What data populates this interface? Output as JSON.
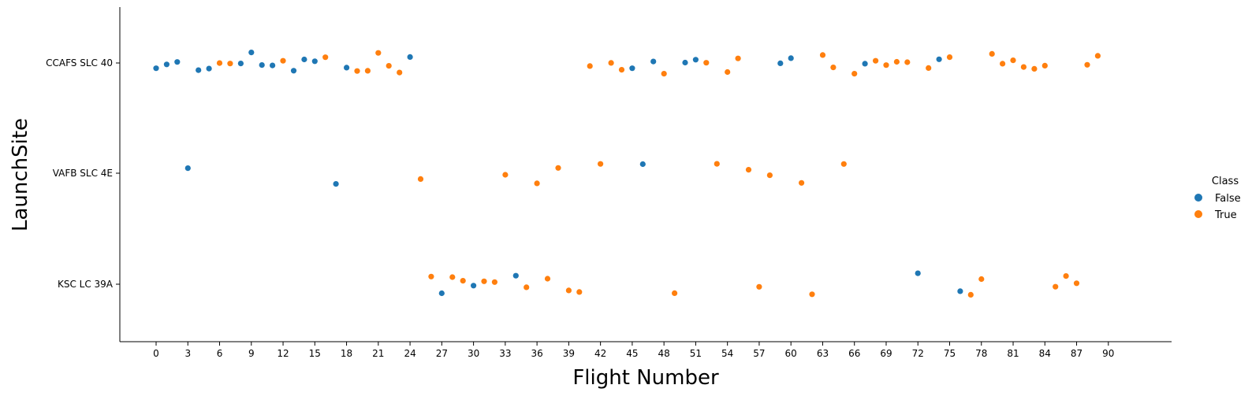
{
  "chart_data": {
    "type": "scatter",
    "xlabel": "Flight Number",
    "ylabel": "LaunchSite",
    "categories": [
      "CCAFS SLC 40",
      "VAFB SLC 4E",
      "KSC LC 39A"
    ],
    "x_ticks": [
      "0",
      "3",
      "6",
      "9",
      "12",
      "15",
      "18",
      "21",
      "24",
      "27",
      "30",
      "33",
      "36",
      "39",
      "42",
      "45",
      "48",
      "51",
      "54",
      "57",
      "60",
      "63",
      "66",
      "69",
      "72",
      "75",
      "78",
      "81",
      "84",
      "87",
      "90"
    ],
    "legend": {
      "title": "Class",
      "entries": [
        {
          "label": "False",
          "color": "#1f77b4"
        },
        {
          "label": "True",
          "color": "#ff7f0e"
        }
      ],
      "placement": "right"
    },
    "points": [
      {
        "flight": 1,
        "site": "CCAFS SLC 40",
        "class": "False"
      },
      {
        "flight": 2,
        "site": "CCAFS SLC 40",
        "class": "False"
      },
      {
        "flight": 3,
        "site": "CCAFS SLC 40",
        "class": "False"
      },
      {
        "flight": 4,
        "site": "VAFB SLC 4E",
        "class": "False"
      },
      {
        "flight": 5,
        "site": "CCAFS SLC 40",
        "class": "False"
      },
      {
        "flight": 6,
        "site": "CCAFS SLC 40",
        "class": "False"
      },
      {
        "flight": 7,
        "site": "CCAFS SLC 40",
        "class": "True"
      },
      {
        "flight": 8,
        "site": "CCAFS SLC 40",
        "class": "True"
      },
      {
        "flight": 9,
        "site": "CCAFS SLC 40",
        "class": "False"
      },
      {
        "flight": 10,
        "site": "CCAFS SLC 40",
        "class": "False"
      },
      {
        "flight": 11,
        "site": "CCAFS SLC 40",
        "class": "False"
      },
      {
        "flight": 12,
        "site": "CCAFS SLC 40",
        "class": "False"
      },
      {
        "flight": 13,
        "site": "CCAFS SLC 40",
        "class": "True"
      },
      {
        "flight": 14,
        "site": "CCAFS SLC 40",
        "class": "False"
      },
      {
        "flight": 15,
        "site": "CCAFS SLC 40",
        "class": "False"
      },
      {
        "flight": 16,
        "site": "CCAFS SLC 40",
        "class": "False"
      },
      {
        "flight": 17,
        "site": "CCAFS SLC 40",
        "class": "True"
      },
      {
        "flight": 18,
        "site": "VAFB SLC 4E",
        "class": "False"
      },
      {
        "flight": 19,
        "site": "CCAFS SLC 40",
        "class": "False"
      },
      {
        "flight": 20,
        "site": "CCAFS SLC 40",
        "class": "True"
      },
      {
        "flight": 21,
        "site": "CCAFS SLC 40",
        "class": "True"
      },
      {
        "flight": 22,
        "site": "CCAFS SLC 40",
        "class": "True"
      },
      {
        "flight": 23,
        "site": "CCAFS SLC 40",
        "class": "True"
      },
      {
        "flight": 24,
        "site": "CCAFS SLC 40",
        "class": "True"
      },
      {
        "flight": 25,
        "site": "CCAFS SLC 40",
        "class": "False"
      },
      {
        "flight": 26,
        "site": "VAFB SLC 4E",
        "class": "True"
      },
      {
        "flight": 27,
        "site": "KSC LC 39A",
        "class": "True"
      },
      {
        "flight": 28,
        "site": "KSC LC 39A",
        "class": "False"
      },
      {
        "flight": 29,
        "site": "KSC LC 39A",
        "class": "True"
      },
      {
        "flight": 30,
        "site": "KSC LC 39A",
        "class": "True"
      },
      {
        "flight": 31,
        "site": "KSC LC 39A",
        "class": "False"
      },
      {
        "flight": 32,
        "site": "KSC LC 39A",
        "class": "True"
      },
      {
        "flight": 33,
        "site": "KSC LC 39A",
        "class": "True"
      },
      {
        "flight": 34,
        "site": "VAFB SLC 4E",
        "class": "True"
      },
      {
        "flight": 35,
        "site": "KSC LC 39A",
        "class": "False"
      },
      {
        "flight": 36,
        "site": "KSC LC 39A",
        "class": "True"
      },
      {
        "flight": 37,
        "site": "VAFB SLC 4E",
        "class": "True"
      },
      {
        "flight": 38,
        "site": "KSC LC 39A",
        "class": "True"
      },
      {
        "flight": 39,
        "site": "VAFB SLC 4E",
        "class": "True"
      },
      {
        "flight": 40,
        "site": "KSC LC 39A",
        "class": "True"
      },
      {
        "flight": 41,
        "site": "KSC LC 39A",
        "class": "True"
      },
      {
        "flight": 42,
        "site": "CCAFS SLC 40",
        "class": "True"
      },
      {
        "flight": 43,
        "site": "VAFB SLC 4E",
        "class": "True"
      },
      {
        "flight": 44,
        "site": "CCAFS SLC 40",
        "class": "True"
      },
      {
        "flight": 45,
        "site": "CCAFS SLC 40",
        "class": "True"
      },
      {
        "flight": 46,
        "site": "CCAFS SLC 40",
        "class": "False"
      },
      {
        "flight": 47,
        "site": "VAFB SLC 4E",
        "class": "False"
      },
      {
        "flight": 48,
        "site": "CCAFS SLC 40",
        "class": "False"
      },
      {
        "flight": 49,
        "site": "CCAFS SLC 40",
        "class": "True"
      },
      {
        "flight": 50,
        "site": "KSC LC 39A",
        "class": "True"
      },
      {
        "flight": 51,
        "site": "CCAFS SLC 40",
        "class": "False"
      },
      {
        "flight": 52,
        "site": "CCAFS SLC 40",
        "class": "False"
      },
      {
        "flight": 53,
        "site": "CCAFS SLC 40",
        "class": "True"
      },
      {
        "flight": 54,
        "site": "VAFB SLC 4E",
        "class": "True"
      },
      {
        "flight": 55,
        "site": "CCAFS SLC 40",
        "class": "True"
      },
      {
        "flight": 56,
        "site": "CCAFS SLC 40",
        "class": "True"
      },
      {
        "flight": 57,
        "site": "VAFB SLC 4E",
        "class": "True"
      },
      {
        "flight": 58,
        "site": "KSC LC 39A",
        "class": "True"
      },
      {
        "flight": 59,
        "site": "VAFB SLC 4E",
        "class": "True"
      },
      {
        "flight": 60,
        "site": "CCAFS SLC 40",
        "class": "False"
      },
      {
        "flight": 61,
        "site": "CCAFS SLC 40",
        "class": "False"
      },
      {
        "flight": 62,
        "site": "VAFB SLC 4E",
        "class": "True"
      },
      {
        "flight": 63,
        "site": "KSC LC 39A",
        "class": "True"
      },
      {
        "flight": 64,
        "site": "CCAFS SLC 40",
        "class": "True"
      },
      {
        "flight": 65,
        "site": "CCAFS SLC 40",
        "class": "True"
      },
      {
        "flight": 66,
        "site": "VAFB SLC 4E",
        "class": "True"
      },
      {
        "flight": 67,
        "site": "CCAFS SLC 40",
        "class": "True"
      },
      {
        "flight": 68,
        "site": "CCAFS SLC 40",
        "class": "False"
      },
      {
        "flight": 69,
        "site": "CCAFS SLC 40",
        "class": "True"
      },
      {
        "flight": 70,
        "site": "CCAFS SLC 40",
        "class": "True"
      },
      {
        "flight": 71,
        "site": "CCAFS SLC 40",
        "class": "True"
      },
      {
        "flight": 72,
        "site": "CCAFS SLC 40",
        "class": "True"
      },
      {
        "flight": 73,
        "site": "KSC LC 39A",
        "class": "False"
      },
      {
        "flight": 74,
        "site": "CCAFS SLC 40",
        "class": "True"
      },
      {
        "flight": 75,
        "site": "CCAFS SLC 40",
        "class": "False"
      },
      {
        "flight": 76,
        "site": "CCAFS SLC 40",
        "class": "True"
      },
      {
        "flight": 77,
        "site": "KSC LC 39A",
        "class": "False"
      },
      {
        "flight": 78,
        "site": "KSC LC 39A",
        "class": "True"
      },
      {
        "flight": 79,
        "site": "KSC LC 39A",
        "class": "True"
      },
      {
        "flight": 80,
        "site": "CCAFS SLC 40",
        "class": "True"
      },
      {
        "flight": 81,
        "site": "CCAFS SLC 40",
        "class": "True"
      },
      {
        "flight": 82,
        "site": "CCAFS SLC 40",
        "class": "True"
      },
      {
        "flight": 83,
        "site": "CCAFS SLC 40",
        "class": "True"
      },
      {
        "flight": 84,
        "site": "CCAFS SLC 40",
        "class": "True"
      },
      {
        "flight": 85,
        "site": "CCAFS SLC 40",
        "class": "True"
      },
      {
        "flight": 86,
        "site": "KSC LC 39A",
        "class": "True"
      },
      {
        "flight": 87,
        "site": "KSC LC 39A",
        "class": "True"
      },
      {
        "flight": 88,
        "site": "KSC LC 39A",
        "class": "True"
      },
      {
        "flight": 89,
        "site": "CCAFS SLC 40",
        "class": "True"
      },
      {
        "flight": 90,
        "site": "CCAFS SLC 40",
        "class": "True"
      }
    ]
  }
}
